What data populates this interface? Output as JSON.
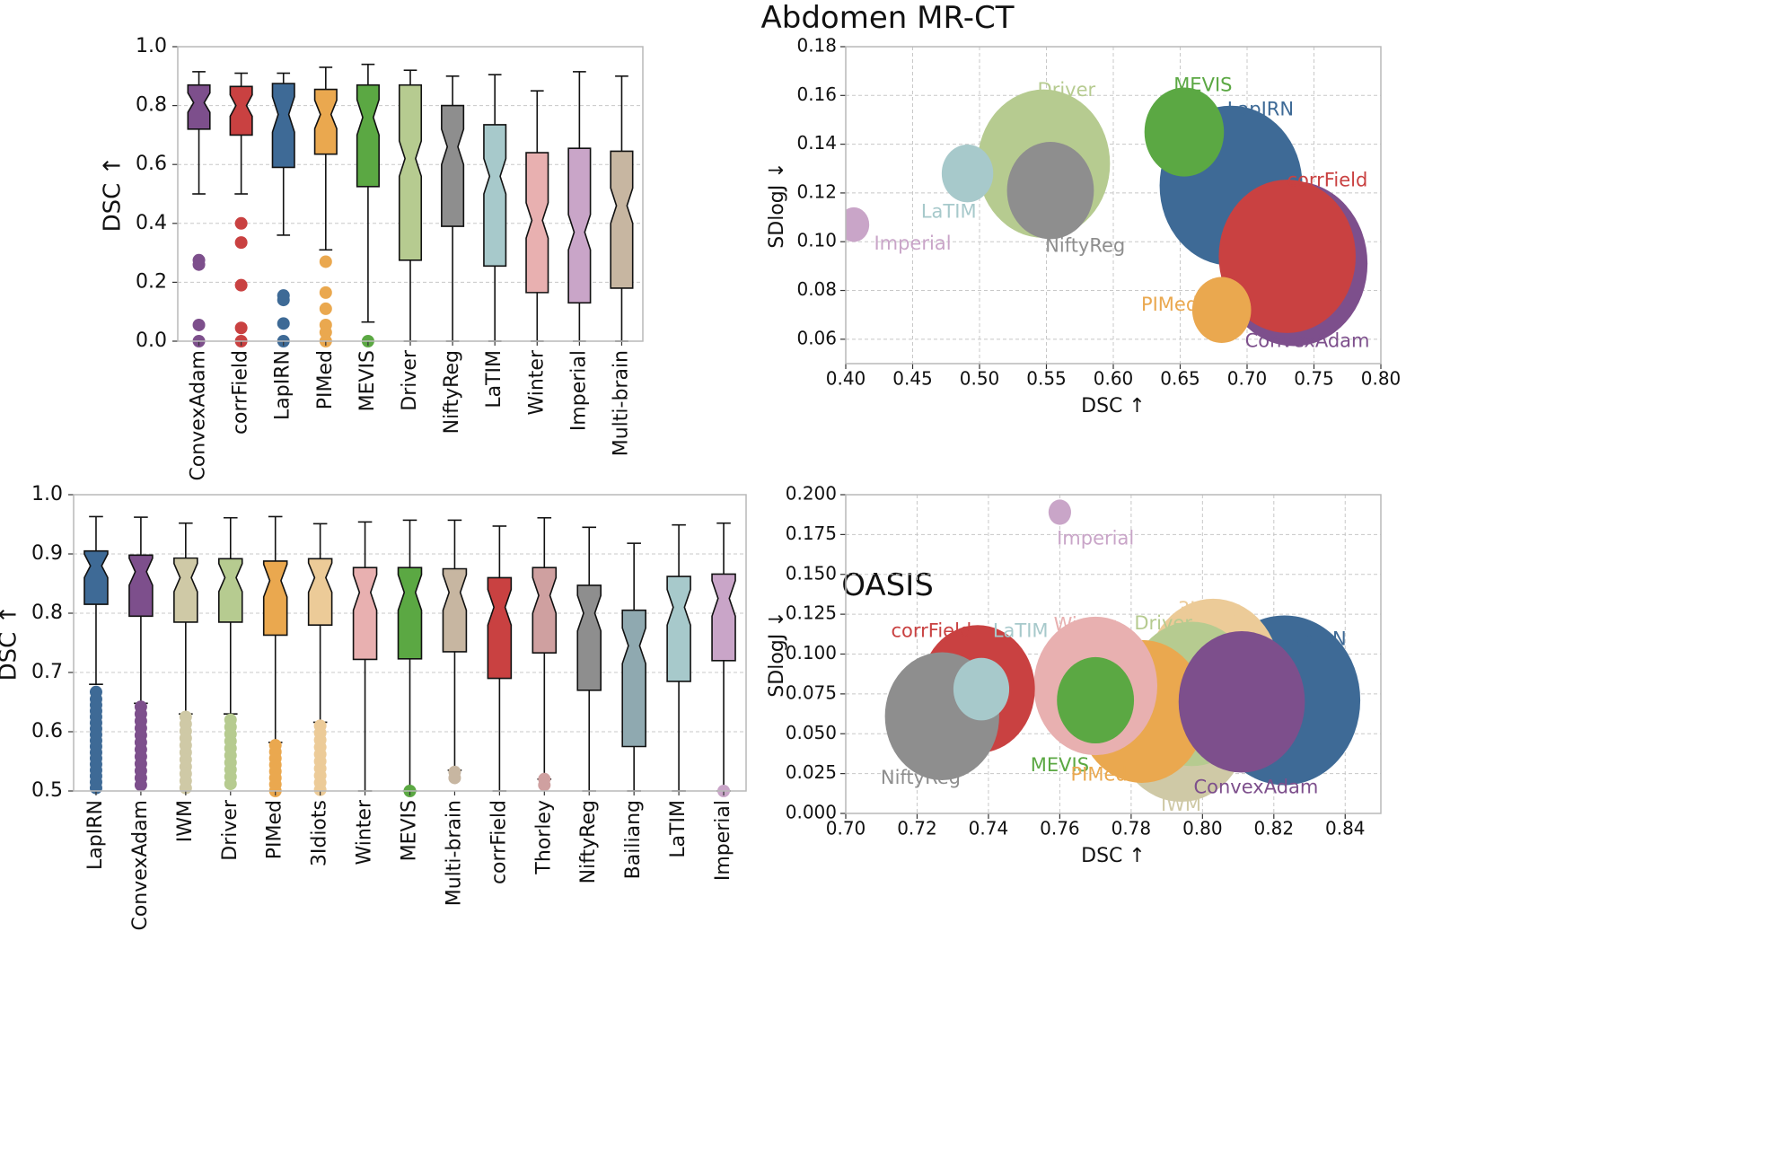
{
  "figure": {
    "section_titles": [
      "Abdomen MR-CT",
      "OASIS"
    ]
  },
  "chart_data": [
    {
      "type": "box",
      "panel": "abdomen-boxplot",
      "ylabel": "DSC ↑",
      "ylim": [
        0,
        1
      ],
      "yticks": [
        "0.0",
        "0.2",
        "0.4",
        "0.6",
        "0.8",
        "1.0"
      ],
      "grid": true,
      "boxes": [
        {
          "name": "ConvexAdam",
          "color": "#7d4f8c",
          "whislo": 0.5,
          "q1": 0.72,
          "med": 0.81,
          "q3": 0.87,
          "whishi": 0.915,
          "outliers": [
            0.275,
            0.26,
            0.055,
            0.0
          ]
        },
        {
          "name": "corrField",
          "color": "#c94141",
          "whislo": 0.5,
          "q1": 0.7,
          "med": 0.8,
          "q3": 0.865,
          "whishi": 0.91,
          "outliers": [
            0.4,
            0.335,
            0.19,
            0.045,
            0.0
          ]
        },
        {
          "name": "LapIRN",
          "color": "#3e6a96",
          "whislo": 0.36,
          "q1": 0.59,
          "med": 0.77,
          "q3": 0.875,
          "whishi": 0.91,
          "outliers": [
            0.155,
            0.14,
            0.06,
            0.0
          ]
        },
        {
          "name": "PIMed",
          "color": "#eaa84f",
          "whislo": 0.31,
          "q1": 0.635,
          "med": 0.77,
          "q3": 0.855,
          "whishi": 0.93,
          "outliers": [
            0.27,
            0.165,
            0.11,
            0.055,
            0.03,
            0.0
          ]
        },
        {
          "name": "MEVIS",
          "color": "#5ba843",
          "whislo": 0.065,
          "q1": 0.525,
          "med": 0.76,
          "q3": 0.87,
          "whishi": 0.94,
          "outliers": [
            0.0
          ]
        },
        {
          "name": "Driver",
          "color": "#b6cb90",
          "whislo": 0.0,
          "q1": 0.275,
          "med": 0.62,
          "q3": 0.87,
          "whishi": 0.92,
          "outliers": []
        },
        {
          "name": "NiftyReg",
          "color": "#8e8e8e",
          "whislo": 0.0,
          "q1": 0.39,
          "med": 0.66,
          "q3": 0.8,
          "whishi": 0.9,
          "outliers": []
        },
        {
          "name": "LaTIM",
          "color": "#a7c9cb",
          "whislo": 0.0,
          "q1": 0.255,
          "med": 0.56,
          "q3": 0.735,
          "whishi": 0.905,
          "outliers": []
        },
        {
          "name": "Winter",
          "color": "#e8b0b0",
          "whislo": 0.0,
          "q1": 0.165,
          "med": 0.41,
          "q3": 0.64,
          "whishi": 0.85,
          "outliers": []
        },
        {
          "name": "Imperial",
          "color": "#c9a5c8",
          "whislo": 0.0,
          "q1": 0.13,
          "med": 0.37,
          "q3": 0.655,
          "whishi": 0.915,
          "outliers": []
        },
        {
          "name": "Multi-brain",
          "color": "#c7b6a1",
          "whislo": 0.0,
          "q1": 0.18,
          "med": 0.46,
          "q3": 0.645,
          "whishi": 0.9,
          "outliers": []
        }
      ]
    },
    {
      "type": "scatter",
      "panel": "abdomen-bubble",
      "xlabel": "DSC ↑",
      "ylabel": "SDlogJ ↓",
      "xlim": [
        0.4,
        0.8
      ],
      "ylim": [
        0.05,
        0.18
      ],
      "xticks": [
        "0.40",
        "0.45",
        "0.50",
        "0.55",
        "0.60",
        "0.65",
        "0.70",
        "0.75",
        "0.80"
      ],
      "yticks": [
        "0.06",
        "0.08",
        "0.10",
        "0.12",
        "0.14",
        "0.16",
        "0.18"
      ],
      "grid": true,
      "points": [
        {
          "name": "ConvexAdam",
          "color": "#7d4f8c",
          "x": 0.735,
          "y": 0.091,
          "size": 1.0,
          "label_x": 0.745,
          "label_y": 0.059
        },
        {
          "name": "corrField",
          "color": "#c94141",
          "x": 0.73,
          "y": 0.094,
          "size": 0.93,
          "label_x": 0.76,
          "label_y": 0.125
        },
        {
          "name": "LapIRN",
          "color": "#3e6a96",
          "x": 0.688,
          "y": 0.123,
          "size": 0.97,
          "label_x": 0.71,
          "label_y": 0.154
        },
        {
          "name": "MEVIS",
          "color": "#5ba843",
          "x": 0.653,
          "y": 0.145,
          "size": 0.54,
          "label_x": 0.667,
          "label_y": 0.164
        },
        {
          "name": "Driver",
          "color": "#b6cb90",
          "x": 0.548,
          "y": 0.132,
          "size": 0.9,
          "label_x": 0.565,
          "label_y": 0.162
        },
        {
          "name": "NiftyReg",
          "color": "#8e8e8e",
          "x": 0.553,
          "y": 0.121,
          "size": 0.59,
          "label_x": 0.579,
          "label_y": 0.098
        },
        {
          "name": "LaTIM",
          "color": "#a7c9cb",
          "x": 0.491,
          "y": 0.128,
          "size": 0.35,
          "label_x": 0.477,
          "label_y": 0.112
        },
        {
          "name": "Imperial",
          "color": "#c9a5c8",
          "x": 0.406,
          "y": 0.107,
          "size": 0.21,
          "label_x": 0.45,
          "label_y": 0.099
        },
        {
          "name": "PIMed",
          "color": "#eaa84f",
          "x": 0.681,
          "y": 0.072,
          "size": 0.4,
          "label_x": 0.642,
          "label_y": 0.074
        }
      ]
    },
    {
      "type": "box",
      "panel": "oasis-boxplot",
      "ylabel": "DSC ↑",
      "ylim": [
        0.5,
        1.0
      ],
      "yticks": [
        "0.5",
        "0.6",
        "0.7",
        "0.8",
        "0.9",
        "1.0"
      ],
      "grid": true,
      "boxes": [
        {
          "name": "LapIRN",
          "color": "#3e6a96",
          "whislo": 0.68,
          "q1": 0.815,
          "med": 0.88,
          "q3": 0.905,
          "whishi": 0.963,
          "outliers": [
            0.667,
            0.655,
            0.645,
            0.635,
            0.625,
            0.615,
            0.605,
            0.595,
            0.585,
            0.575,
            0.565,
            0.555,
            0.545,
            0.535,
            0.525,
            0.515,
            0.505
          ]
        },
        {
          "name": "ConvexAdam",
          "color": "#7d4f8c",
          "whislo": 0.648,
          "q1": 0.795,
          "med": 0.87,
          "q3": 0.898,
          "whishi": 0.962,
          "outliers": [
            0.642,
            0.63,
            0.618,
            0.606,
            0.594,
            0.582,
            0.57,
            0.558,
            0.546,
            0.534,
            0.522,
            0.51
          ]
        },
        {
          "name": "IWM",
          "color": "#cfc9a6",
          "whislo": 0.63,
          "q1": 0.785,
          "med": 0.86,
          "q3": 0.893,
          "whishi": 0.952,
          "outliers": [
            0.625,
            0.613,
            0.601,
            0.589,
            0.577,
            0.565,
            0.553,
            0.541,
            0.529,
            0.517,
            0.505
          ]
        },
        {
          "name": "Driver",
          "color": "#b6cb90",
          "whislo": 0.63,
          "q1": 0.785,
          "med": 0.86,
          "q3": 0.892,
          "whishi": 0.961,
          "outliers": [
            0.62,
            0.608,
            0.596,
            0.584,
            0.572,
            0.56,
            0.548,
            0.536,
            0.524,
            0.512
          ]
        },
        {
          "name": "PIMed",
          "color": "#eaa84f",
          "whislo": 0.582,
          "q1": 0.763,
          "med": 0.855,
          "q3": 0.888,
          "whishi": 0.963,
          "outliers": [
            0.577,
            0.566,
            0.555,
            0.544,
            0.533,
            0.522,
            0.511,
            0.5
          ]
        },
        {
          "name": "3Idiots",
          "color": "#eccb98",
          "whislo": 0.616,
          "q1": 0.78,
          "med": 0.86,
          "q3": 0.892,
          "whishi": 0.951,
          "outliers": [
            0.61,
            0.598,
            0.586,
            0.574,
            0.562,
            0.55,
            0.538,
            0.526,
            0.514,
            0.502
          ]
        },
        {
          "name": "Winter",
          "color": "#e8b0b0",
          "whislo": 0.5,
          "q1": 0.722,
          "med": 0.835,
          "q3": 0.877,
          "whishi": 0.954,
          "outliers": []
        },
        {
          "name": "MEVIS",
          "color": "#5ba843",
          "whislo": 0.5,
          "q1": 0.723,
          "med": 0.835,
          "q3": 0.877,
          "whishi": 0.957,
          "outliers": [
            0.5
          ]
        },
        {
          "name": "Multi-brain",
          "color": "#c7b6a1",
          "whislo": 0.535,
          "q1": 0.735,
          "med": 0.835,
          "q3": 0.875,
          "whishi": 0.957,
          "outliers": [
            0.532,
            0.522
          ]
        },
        {
          "name": "corrField",
          "color": "#c94141",
          "whislo": 0.5,
          "q1": 0.69,
          "med": 0.81,
          "q3": 0.86,
          "whishi": 0.947,
          "outliers": []
        },
        {
          "name": "Thorley",
          "color": "#cfa0a0",
          "whislo": 0.52,
          "q1": 0.733,
          "med": 0.83,
          "q3": 0.877,
          "whishi": 0.961,
          "outliers": [
            0.52,
            0.51
          ]
        },
        {
          "name": "NiftyReg",
          "color": "#8e8e8e",
          "whislo": 0.5,
          "q1": 0.67,
          "med": 0.8,
          "q3": 0.847,
          "whishi": 0.945,
          "outliers": []
        },
        {
          "name": "Bailiang",
          "color": "#8fa9b0",
          "whislo": 0.5,
          "q1": 0.575,
          "med": 0.745,
          "q3": 0.805,
          "whishi": 0.918,
          "outliers": []
        },
        {
          "name": "LaTIM",
          "color": "#a7c9cb",
          "whislo": 0.5,
          "q1": 0.685,
          "med": 0.81,
          "q3": 0.862,
          "whishi": 0.949,
          "outliers": []
        },
        {
          "name": "Imperial",
          "color": "#c9a5c8",
          "whislo": 0.5,
          "q1": 0.72,
          "med": 0.825,
          "q3": 0.866,
          "whishi": 0.952,
          "outliers": [
            0.5
          ]
        }
      ]
    },
    {
      "type": "scatter",
      "panel": "oasis-bubble",
      "xlabel": "DSC ↑",
      "ylabel": "SDlogJ ↓",
      "xlim": [
        0.7,
        0.85
      ],
      "ylim": [
        0.0,
        0.2
      ],
      "xticks": [
        "0.70",
        "0.72",
        "0.74",
        "0.76",
        "0.78",
        "0.80",
        "0.82",
        "0.84"
      ],
      "yticks": [
        "0.000",
        "0.025",
        "0.050",
        "0.075",
        "0.100",
        "0.125",
        "0.150",
        "0.175",
        "0.200"
      ],
      "grid": true,
      "points": [
        {
          "name": "Imperial",
          "color": "#c9a5c8",
          "x": 0.76,
          "y": 0.189,
          "size": 0.17,
          "label_x": 0.77,
          "label_y": 0.172
        },
        {
          "name": "3Idiots",
          "color": "#eccb98",
          "x": 0.803,
          "y": 0.088,
          "size": 1.0,
          "label_x": 0.802,
          "label_y": 0.128
        },
        {
          "name": "Winter",
          "color": "#e8b0b0",
          "x": 0.77,
          "y": 0.08,
          "size": 0.93,
          "label_x": 0.767,
          "label_y": 0.118
        },
        {
          "name": "Driver",
          "color": "#b6cb90",
          "x": 0.797,
          "y": 0.075,
          "size": 0.97,
          "label_x": 0.789,
          "label_y": 0.119
        },
        {
          "name": "IWM",
          "color": "#cfc9a6",
          "x": 0.794,
          "y": 0.054,
          "size": 1.0,
          "label_x": 0.794,
          "label_y": 0.005
        },
        {
          "name": "LapIRN",
          "color": "#3e6a96",
          "x": 0.823,
          "y": 0.071,
          "size": 1.14,
          "label_x": 0.831,
          "label_y": 0.109
        },
        {
          "name": "ConvexAdam",
          "color": "#7d4f8c",
          "x": 0.811,
          "y": 0.07,
          "size": 0.95,
          "label_x": 0.815,
          "label_y": 0.016
        },
        {
          "name": "MEVIS",
          "color": "#5ba843",
          "x": 0.77,
          "y": 0.071,
          "size": 0.58,
          "label_x": 0.76,
          "label_y": 0.03
        },
        {
          "name": "PIMed",
          "color": "#eaa84f",
          "x": 0.783,
          "y": 0.064,
          "size": 0.96,
          "label_x": 0.771,
          "label_y": 0.024
        },
        {
          "name": "corrField",
          "color": "#c94141",
          "x": 0.737,
          "y": 0.078,
          "size": 0.86,
          "label_x": 0.724,
          "label_y": 0.114
        },
        {
          "name": "LaTIM",
          "color": "#a7c9cb",
          "x": 0.738,
          "y": 0.078,
          "size": 0.42,
          "label_x": 0.749,
          "label_y": 0.114
        },
        {
          "name": "NiftyReg",
          "color": "#8e8e8e",
          "x": 0.727,
          "y": 0.061,
          "size": 0.86,
          "label_x": 0.721,
          "label_y": 0.022
        }
      ]
    }
  ]
}
